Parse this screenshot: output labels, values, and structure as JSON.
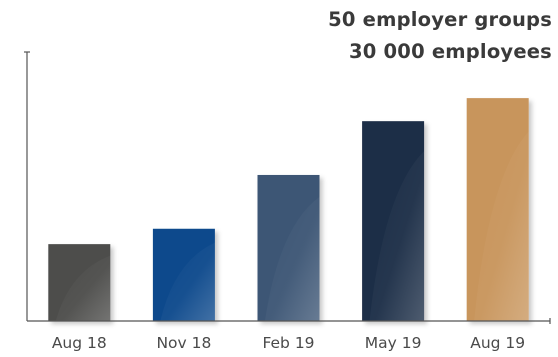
{
  "chart_data": {
    "type": "bar",
    "categories": [
      "Aug 18",
      "Nov 18",
      "Feb 19",
      "May 19",
      "Aug 19"
    ],
    "values": [
      20,
      24,
      38,
      52,
      58
    ],
    "ylim": [
      0,
      70
    ],
    "grid": false,
    "legend": "none",
    "annotations": [
      "50 employer groups",
      "30 000 employees"
    ],
    "colors": [
      "#4d4d4b",
      "#0d4a8c",
      "#3c5774",
      "#1f2d47",
      "#c8955c"
    ]
  }
}
